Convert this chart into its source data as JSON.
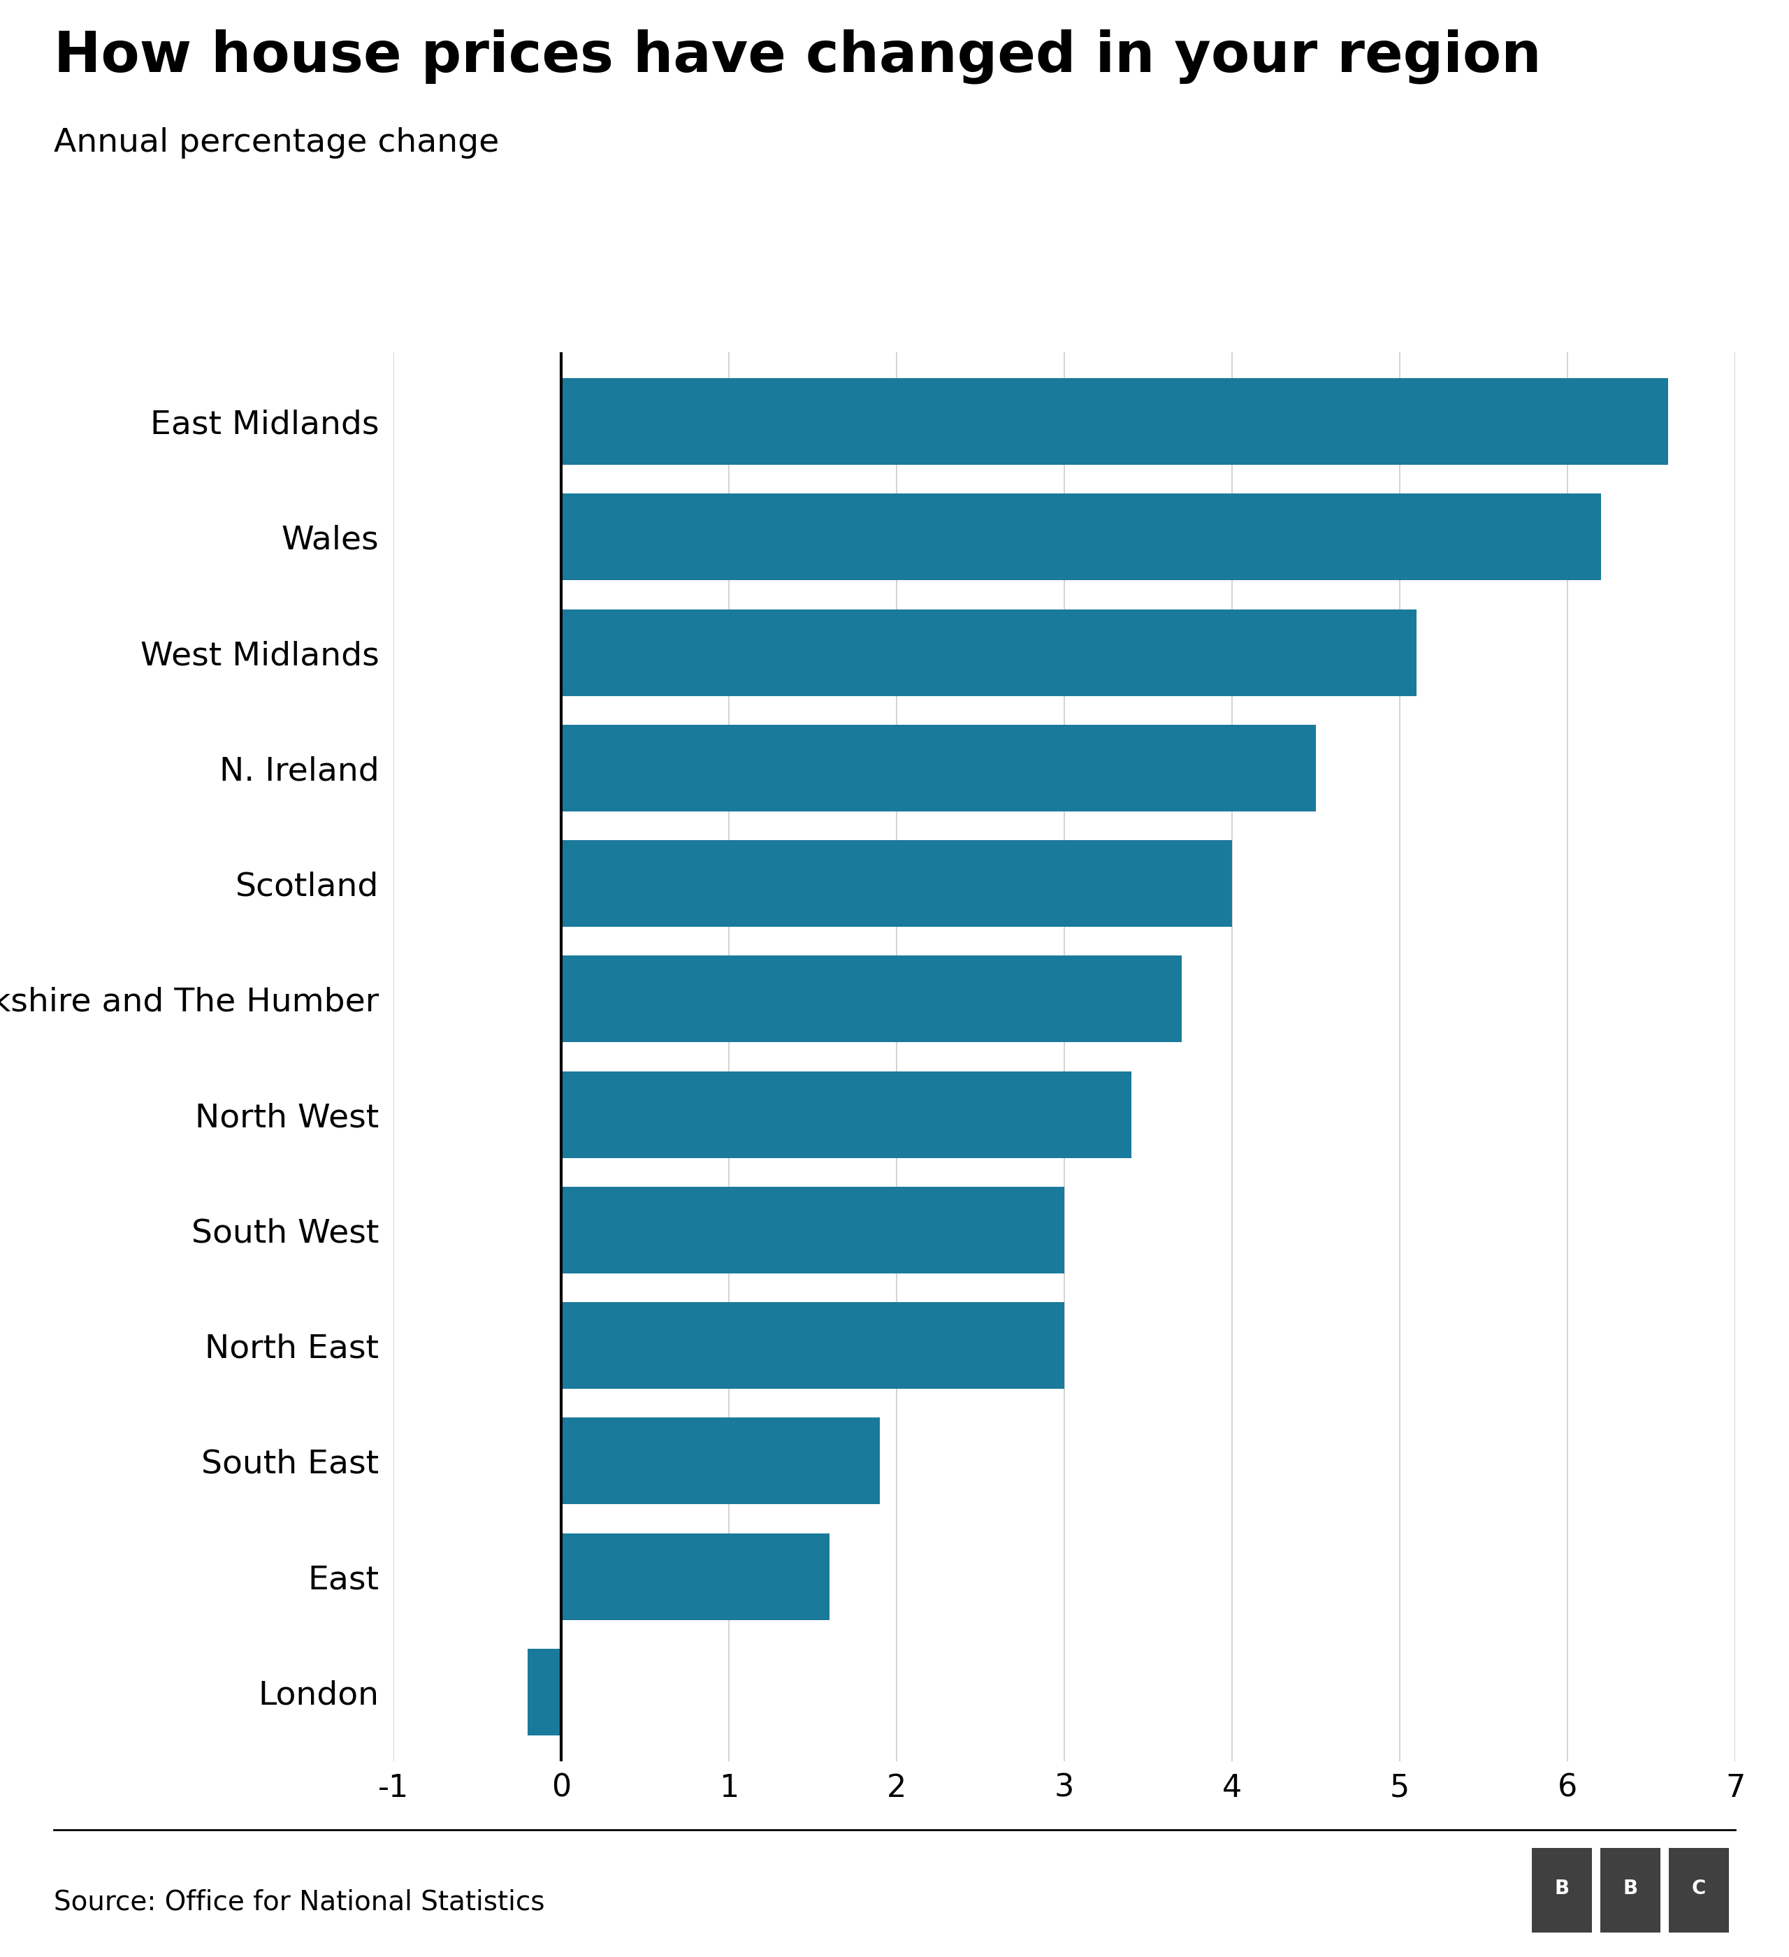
{
  "title": "How house prices have changed in your region",
  "subtitle": "Annual percentage change",
  "source": "Source: Office for National Statistics",
  "bar_color": "#1a7a9b",
  "background_color": "#ffffff",
  "categories": [
    "East Midlands",
    "Wales",
    "West Midlands",
    "N. Ireland",
    "Scotland",
    "Yorkshire and The Humber",
    "North West",
    "South West",
    "North East",
    "South East",
    "East",
    "London"
  ],
  "values": [
    6.6,
    6.2,
    5.1,
    4.5,
    4.0,
    3.7,
    3.4,
    3.0,
    3.0,
    1.9,
    1.6,
    -0.2
  ],
  "xlim": [
    -1,
    7
  ],
  "xticks": [
    -1,
    0,
    1,
    2,
    3,
    4,
    5,
    6,
    7
  ],
  "title_fontsize": 58,
  "subtitle_fontsize": 34,
  "tick_fontsize": 32,
  "label_fontsize": 34,
  "source_fontsize": 28,
  "bar_height": 0.75
}
